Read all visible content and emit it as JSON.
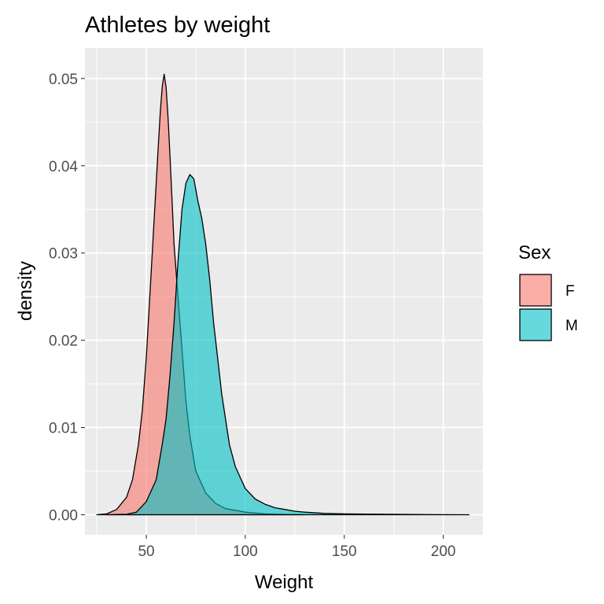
{
  "chart_data": {
    "type": "area",
    "title": "Athletes by weight",
    "xlabel": "Weight",
    "ylabel": "density",
    "xlim": [
      19,
      220
    ],
    "ylim": [
      -0.0023,
      0.0535
    ],
    "x_ticks": [
      50,
      100,
      150,
      200
    ],
    "y_ticks": [
      0.0,
      0.01,
      0.02,
      0.03,
      0.04,
      0.05
    ],
    "x_tick_labels": [
      "50",
      "100",
      "150",
      "200"
    ],
    "y_tick_labels": [
      "0.00",
      "0.01",
      "0.02",
      "0.03",
      "0.04",
      "0.05"
    ],
    "grid": true,
    "legend": {
      "title": "Sex",
      "position": "right"
    },
    "series": [
      {
        "name": "F",
        "color": "#F8766D",
        "points": [
          [
            25,
            0
          ],
          [
            30,
            0.0001
          ],
          [
            35,
            0.0006
          ],
          [
            40,
            0.002
          ],
          [
            43,
            0.004
          ],
          [
            46,
            0.008
          ],
          [
            48,
            0.012
          ],
          [
            50,
            0.018
          ],
          [
            52,
            0.026
          ],
          [
            54,
            0.034
          ],
          [
            56,
            0.042
          ],
          [
            57,
            0.046
          ],
          [
            58,
            0.049
          ],
          [
            59,
            0.0505
          ],
          [
            60,
            0.049
          ],
          [
            61,
            0.0455
          ],
          [
            62,
            0.041
          ],
          [
            63,
            0.036
          ],
          [
            64,
            0.031
          ],
          [
            66,
            0.025
          ],
          [
            68,
            0.019
          ],
          [
            70,
            0.013
          ],
          [
            72,
            0.009
          ],
          [
            75,
            0.005
          ],
          [
            80,
            0.0025
          ],
          [
            85,
            0.0013
          ],
          [
            90,
            0.0007
          ],
          [
            100,
            0.0003
          ],
          [
            110,
            0.0001
          ],
          [
            120,
            3e-05
          ],
          [
            130,
            0
          ]
        ]
      },
      {
        "name": "M",
        "color": "#00BFC4",
        "points": [
          [
            30,
            0
          ],
          [
            40,
            5e-05
          ],
          [
            45,
            0.0003
          ],
          [
            50,
            0.0015
          ],
          [
            55,
            0.004
          ],
          [
            58,
            0.008
          ],
          [
            60,
            0.011
          ],
          [
            62,
            0.016
          ],
          [
            64,
            0.022
          ],
          [
            66,
            0.029
          ],
          [
            68,
            0.035
          ],
          [
            70,
            0.038
          ],
          [
            72,
            0.039
          ],
          [
            74,
            0.0385
          ],
          [
            76,
            0.036
          ],
          [
            78,
            0.034
          ],
          [
            80,
            0.031
          ],
          [
            82,
            0.027
          ],
          [
            84,
            0.022
          ],
          [
            86,
            0.018
          ],
          [
            88,
            0.014
          ],
          [
            90,
            0.011
          ],
          [
            92,
            0.008
          ],
          [
            95,
            0.0055
          ],
          [
            100,
            0.003
          ],
          [
            105,
            0.0018
          ],
          [
            110,
            0.0012
          ],
          [
            115,
            0.0008
          ],
          [
            120,
            0.0006
          ],
          [
            125,
            0.0004
          ],
          [
            130,
            0.0003
          ],
          [
            140,
            0.00015
          ],
          [
            150,
            0.0001
          ],
          [
            170,
            5e-05
          ],
          [
            190,
            2e-05
          ],
          [
            213,
            0
          ]
        ]
      }
    ]
  }
}
